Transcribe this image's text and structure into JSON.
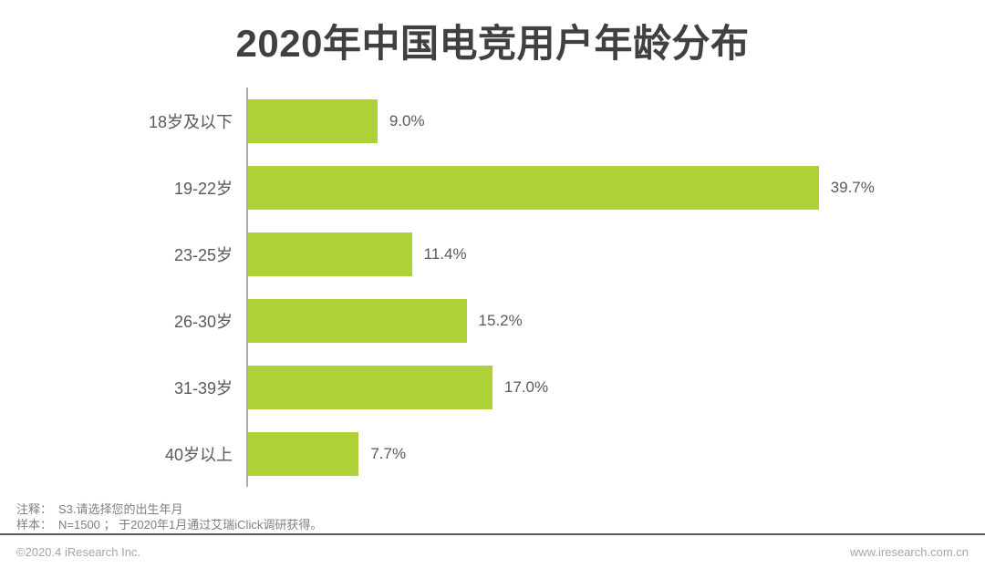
{
  "title": "2020年中国电竞用户年龄分布",
  "chart_data": {
    "type": "bar",
    "orientation": "horizontal",
    "title": "2020年中国电竞用户年龄分布",
    "categories": [
      "18岁及以下",
      "19-22岁",
      "23-25岁",
      "26-30岁",
      "31-39岁",
      "40岁以上"
    ],
    "values": [
      9.0,
      39.7,
      11.4,
      15.2,
      17.0,
      7.7
    ],
    "value_labels": [
      "9.0%",
      "39.7%",
      "11.4%",
      "15.2%",
      "17.0%",
      "7.7%"
    ],
    "xlim": [
      0,
      50
    ],
    "grid": false,
    "legend": false,
    "bar_color": "#add136",
    "axis_color": "#adadad",
    "label_color": "#595959"
  },
  "notes": [
    {
      "label": "注释：",
      "text": "S3.请选择您的出生年月"
    },
    {
      "label": "样本：",
      "text": "N=1500 ； 于2020年1月通过艾瑞iClick调研获得。"
    }
  ],
  "footer": {
    "copyright": "©2020.4 iResearch Inc.",
    "website": "www.iresearch.com.cn"
  }
}
